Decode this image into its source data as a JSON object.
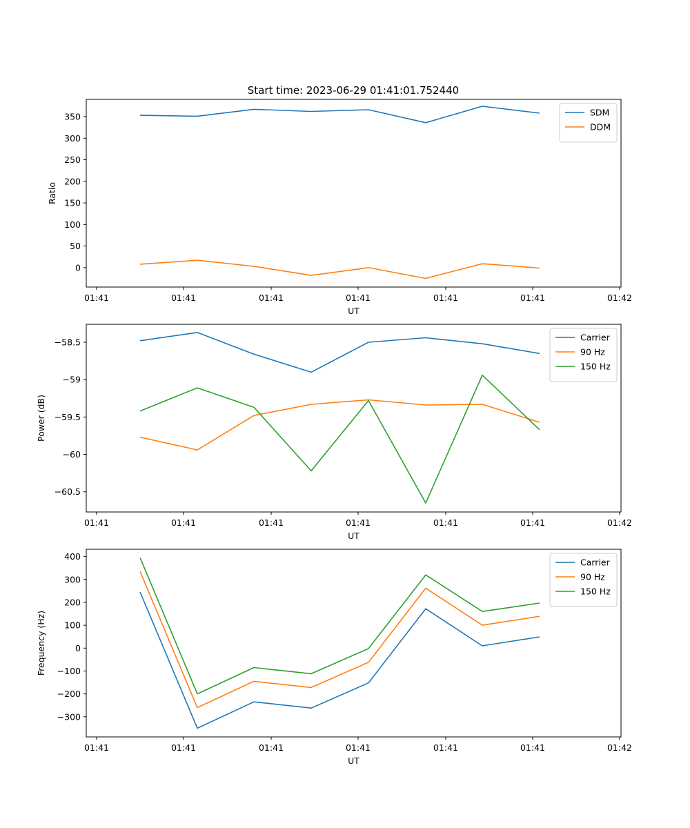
{
  "figure": {
    "title": "Start time: 2023-06-29 01:41:01.752440"
  },
  "chart_data": [
    {
      "type": "line",
      "xlabel": "UT",
      "ylabel": "Ratio",
      "xticks": [
        "01:41",
        "01:41",
        "01:41",
        "01:41",
        "01:41",
        "01:41",
        "01:42"
      ],
      "yticks": [
        0,
        50,
        100,
        150,
        200,
        250,
        300,
        350
      ],
      "ylim": [
        -45,
        390
      ],
      "legend_position": "top-right",
      "grid": false,
      "series": [
        {
          "name": "SDM",
          "color": "#1f77b4",
          "values": [
            353,
            351,
            367,
            362,
            366,
            336,
            374,
            358
          ]
        },
        {
          "name": "DDM",
          "color": "#ff7f0e",
          "values": [
            8,
            17,
            3,
            -18,
            0,
            -25,
            9,
            -1
          ]
        }
      ]
    },
    {
      "type": "line",
      "xlabel": "UT",
      "ylabel": "Power (dB)",
      "xticks": [
        "01:41",
        "01:41",
        "01:41",
        "01:41",
        "01:41",
        "01:41",
        "01:42"
      ],
      "yticks": [
        -58.5,
        -59.0,
        -59.5,
        -60.0,
        -60.5
      ],
      "ylim": [
        -60.77,
        -58.26
      ],
      "legend_position": "top-right",
      "grid": false,
      "series": [
        {
          "name": "Carrier",
          "color": "#1f77b4",
          "values": [
            -58.48,
            -58.37,
            -58.66,
            -58.9,
            -58.5,
            -58.44,
            -58.52,
            -58.65
          ]
        },
        {
          "name": "90 Hz",
          "color": "#ff7f0e",
          "values": [
            -59.77,
            -59.94,
            -59.48,
            -59.33,
            -59.27,
            -59.34,
            -59.33,
            -59.57
          ]
        },
        {
          "name": "150 Hz",
          "color": "#2ca02c",
          "values": [
            -59.42,
            -59.11,
            -59.37,
            -60.22,
            -59.28,
            -60.65,
            -58.94,
            -59.67
          ]
        }
      ]
    },
    {
      "type": "line",
      "xlabel": "UT",
      "ylabel": "Frequency (Hz)",
      "xticks": [
        "01:41",
        "01:41",
        "01:41",
        "01:41",
        "01:41",
        "01:41",
        "01:42"
      ],
      "yticks": [
        400,
        300,
        200,
        100,
        0,
        -100,
        -200,
        -300
      ],
      "ylim": [
        -388,
        432
      ],
      "legend_position": "top-right",
      "grid": false,
      "series": [
        {
          "name": "Carrier",
          "color": "#1f77b4",
          "values": [
            245,
            -350,
            -235,
            -262,
            -152,
            172,
            10,
            49
          ]
        },
        {
          "name": "90 Hz",
          "color": "#ff7f0e",
          "values": [
            335,
            -260,
            -145,
            -172,
            -62,
            262,
            100,
            139
          ]
        },
        {
          "name": "150 Hz",
          "color": "#2ca02c",
          "values": [
            395,
            -200,
            -85,
            -112,
            -2,
            320,
            160,
            197
          ]
        }
      ]
    }
  ]
}
